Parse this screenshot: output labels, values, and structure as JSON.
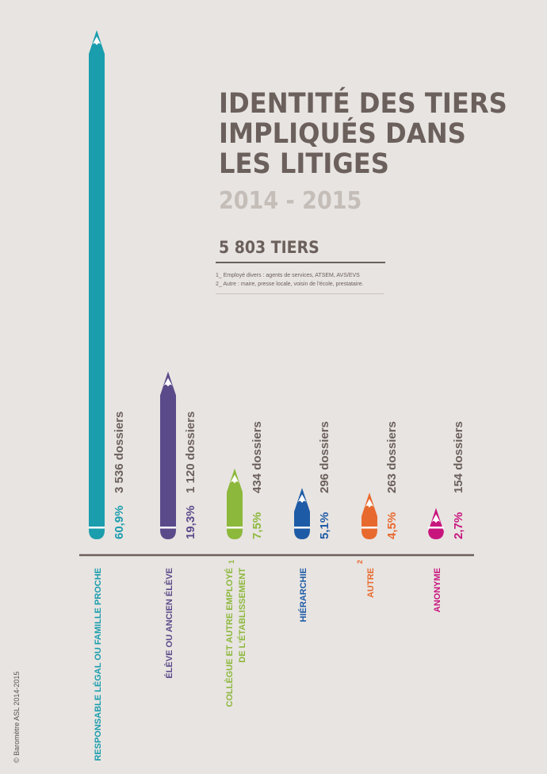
{
  "header": {
    "title_lines": [
      "IDENTITÉ DES TIERS",
      "IMPLIQUÉS DANS",
      "LES LITIGES"
    ],
    "years": "2014 - 2015",
    "total": "5 803 TIERS"
  },
  "notes": [
    "1_ Employé divers : agents de services, ATSEM, AVS/EVS",
    "2_ Autre : maire, presse locale, voisin de l'école, prestataire."
  ],
  "copyright": "© Baromètre ASL 2014-2015",
  "colors": {
    "background": "#e8e4e1",
    "title": "#6b605c",
    "years": "#c4bdb8",
    "axis": "#6b605c"
  },
  "chart_data": {
    "type": "bar",
    "title": "IDENTITÉ DES TIERS IMPLIQUÉS DANS LES LITIGES",
    "categories": [
      {
        "lines": [
          "RESPONSABLE LÉGAL OU FAMILLE PROCHE"
        ],
        "sup": ""
      },
      {
        "lines": [
          "ÉLÈVE OU ANCIEN ÉLÈVE"
        ],
        "sup": ""
      },
      {
        "lines": [
          "COLLÈGUE ET AUTRE EMPLOYÉ",
          "DE L'ÉTABLISSEMENT"
        ],
        "sup": "1"
      },
      {
        "lines": [
          "HIÉRARCHIE"
        ],
        "sup": ""
      },
      {
        "lines": [
          "AUTRE"
        ],
        "sup": "2"
      },
      {
        "lines": [
          "ANONYME"
        ],
        "sup": ""
      }
    ],
    "percent_labels": [
      "60,9%",
      "19,3%",
      "7,5%",
      "5,1%",
      "4,5%",
      "2,7%"
    ],
    "percent_values": [
      60.9,
      19.3,
      7.5,
      5.1,
      4.5,
      2.7
    ],
    "count_labels": [
      "3 536 dossiers",
      "1 120 dossiers",
      "434 dossiers",
      "296 dossiers",
      "263 dossiers",
      "154 dossiers"
    ],
    "values": [
      3536,
      1120,
      434,
      296,
      263,
      154
    ],
    "ylim": [
      0,
      3536
    ],
    "colors": [
      "#1a9dad",
      "#5b4a8a",
      "#8cb83c",
      "#1e5ba6",
      "#e8692e",
      "#c8157e"
    ],
    "grid": false,
    "legend": "none"
  }
}
